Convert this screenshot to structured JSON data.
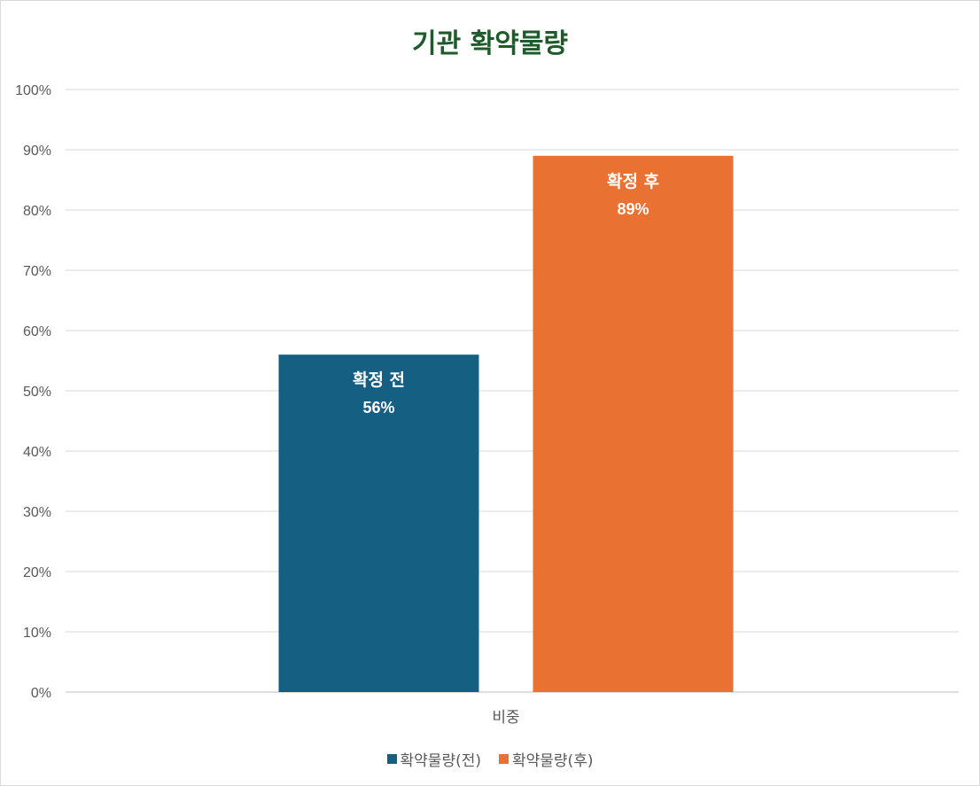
{
  "chart_data": {
    "type": "bar",
    "title": "기관 확약물량",
    "categories": [
      "비중"
    ],
    "ylim": [
      0,
      100
    ],
    "y_ticks": [
      "0%",
      "10%",
      "20%",
      "30%",
      "40%",
      "50%",
      "60%",
      "70%",
      "80%",
      "90%",
      "100%"
    ],
    "grid": true,
    "legend_position": "bottom",
    "series": [
      {
        "name": "확약물량(전)",
        "values": [
          56
        ],
        "color": "#156082",
        "label_name": "확정 전",
        "label_value": "56%"
      },
      {
        "name": "확약물량(후)",
        "values": [
          89
        ],
        "color": "#e97132",
        "label_name": "확정 후",
        "label_value": "89%"
      }
    ]
  }
}
